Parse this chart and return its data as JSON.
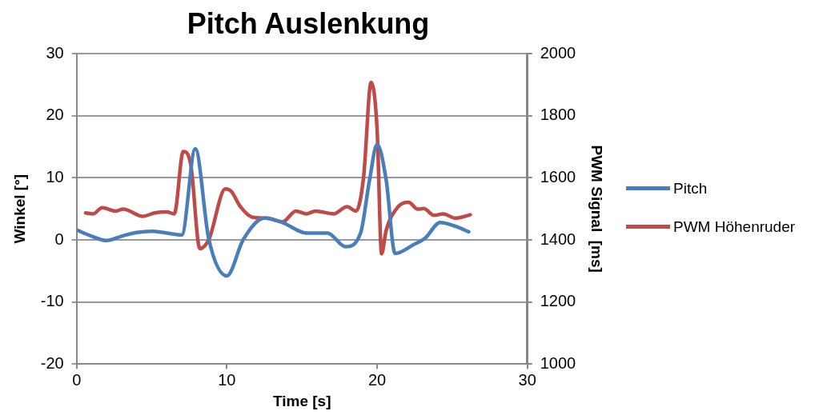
{
  "chart_data": {
    "type": "line",
    "title": "Pitch Auslenkung",
    "xlabel": "Time [s]",
    "ylabel": "Winkel [°]",
    "y2label": "PWM Signal  [ms]",
    "xlim": [
      0,
      30
    ],
    "xticks": [
      0,
      10,
      20,
      30
    ],
    "ylim": [
      -20,
      30
    ],
    "yticks": [
      -20,
      -10,
      0,
      10,
      20,
      30
    ],
    "y2lim": [
      1000,
      2000
    ],
    "y2ticks": [
      1000,
      1200,
      1400,
      1600,
      1800,
      2000
    ],
    "grid": "y",
    "legend": "right",
    "marker": "none",
    "line_style": "solid",
    "series": [
      {
        "name": "Pitch",
        "color": "#4a7ebb",
        "x": [
          0,
          1,
          2,
          3,
          4,
          5,
          6,
          7,
          7.9,
          8.8,
          10,
          11.1,
          12.5,
          13.7,
          15.3,
          16.7,
          17.9,
          18.9,
          19.5,
          20,
          20.6,
          21.2,
          22.4,
          23.2,
          24.2,
          25.2,
          26.1
        ],
        "values": [
          1.6,
          0.6,
          -0.1,
          0.6,
          1.2,
          1.4,
          1.1,
          0.8,
          14.7,
          0.1,
          -5.8,
          0.1,
          3.5,
          2.8,
          1.1,
          1.1,
          -1.1,
          1.1,
          9.7,
          15.4,
          9.7,
          -2.2,
          -0.8,
          0.3,
          2.8,
          2.2,
          1.3
        ]
      },
      {
        "name": "PWM Höhenruder",
        "color": "#be4b48",
        "axis": "y2",
        "x": [
          0.6,
          1.1,
          1.7,
          2.6,
          3.1,
          4.4,
          5.2,
          6,
          6.5,
          7.1,
          7.6,
          8.2,
          8.8,
          9.9,
          10.3,
          10.9,
          11.7,
          12.7,
          13.7,
          14.6,
          15.3,
          15.9,
          17.1,
          18,
          18.6,
          19.1,
          19.6,
          20,
          20.3,
          20.6,
          21.4,
          22.1,
          22.7,
          23.1,
          23.8,
          24.4,
          25.2,
          26.2
        ],
        "values": [
          1487,
          1484,
          1504,
          1493,
          1499,
          1476,
          1487,
          1490,
          1484,
          1685,
          1642,
          1372,
          1401,
          1564,
          1556,
          1507,
          1473,
          1470,
          1458,
          1493,
          1484,
          1493,
          1484,
          1507,
          1493,
          1602,
          1908,
          1756,
          1355,
          1430,
          1507,
          1521,
          1499,
          1501,
          1479,
          1484,
          1470,
          1481
        ]
      }
    ]
  }
}
